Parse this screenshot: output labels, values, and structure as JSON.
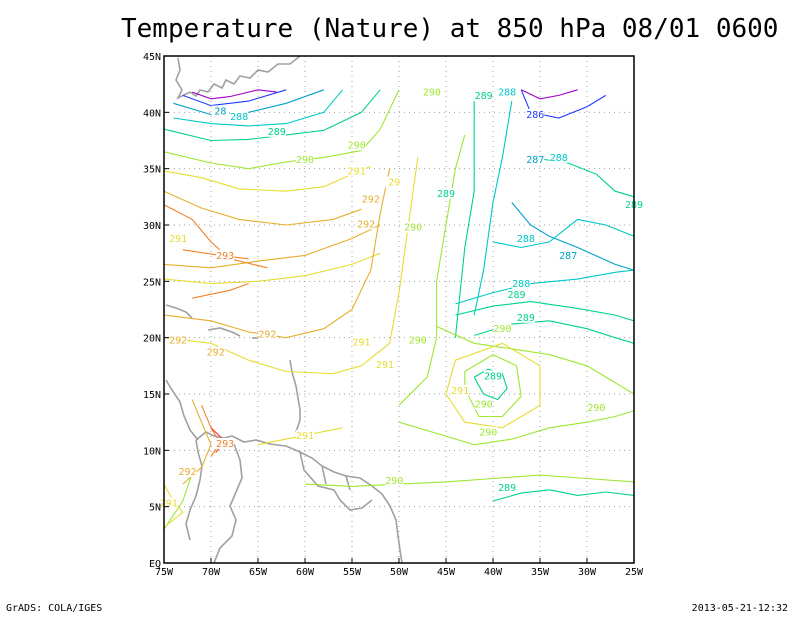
{
  "title": "Temperature (Nature) at 850 hPa 08/01 0600",
  "footer": {
    "left": "GrADS: COLA/IGES",
    "right": "2013-05-21-12:32"
  },
  "axes": {
    "lon_labels": [
      "75W",
      "70W",
      "65W",
      "60W",
      "55W",
      "50W",
      "45W",
      "40W",
      "35W",
      "30W",
      "25W"
    ],
    "lat_labels": [
      "EQ",
      "5N",
      "10N",
      "15N",
      "20N",
      "25N",
      "30N",
      "35N",
      "40N",
      "45N"
    ],
    "lon_range": [
      -75,
      -25
    ],
    "lat_range": [
      0,
      45
    ],
    "grid": "dotted"
  },
  "colors": {
    "c286": "#1e3cff",
    "c287": "#00a0c8",
    "c288": "#00c8c8",
    "c289": "#00d28c",
    "c290": "#a0e632",
    "c291": "#e6dc32",
    "c292": "#e6af2d",
    "c293": "#f08228",
    "c294": "#fa3c3c",
    "c_purple": "#a000c8",
    "coast": "#a0a0a0"
  },
  "contour_labels": [
    {
      "text": "290",
      "lon": -46.5,
      "lat": 41.5,
      "color": "c290"
    },
    {
      "text": "289",
      "lon": -41.0,
      "lat": 41.2,
      "color": "c289"
    },
    {
      "text": "288",
      "lon": -38.5,
      "lat": 41.5,
      "color": "c288"
    },
    {
      "text": "286",
      "lon": -35.5,
      "lat": 39.5,
      "color": "c286"
    },
    {
      "text": "28",
      "lon": -69.0,
      "lat": 39.8,
      "color": "c287"
    },
    {
      "text": "288",
      "lon": -67.0,
      "lat": 39.3,
      "color": "c288"
    },
    {
      "text": "289",
      "lon": -63.0,
      "lat": 38.0,
      "color": "c289"
    },
    {
      "text": "287",
      "lon": -35.5,
      "lat": 35.5,
      "color": "c287"
    },
    {
      "text": "288",
      "lon": -33.0,
      "lat": 35.7,
      "color": "c288"
    },
    {
      "text": "290",
      "lon": -60.0,
      "lat": 35.5,
      "color": "c290"
    },
    {
      "text": "290",
      "lon": -54.5,
      "lat": 36.8,
      "color": "c290"
    },
    {
      "text": "291",
      "lon": -54.5,
      "lat": 34.5,
      "color": "c291"
    },
    {
      "text": "29",
      "lon": -50.5,
      "lat": 33.5,
      "color": "c291"
    },
    {
      "text": "292",
      "lon": -53.0,
      "lat": 32.0,
      "color": "c292"
    },
    {
      "text": "289",
      "lon": -45.0,
      "lat": 32.5,
      "color": "c289"
    },
    {
      "text": "289",
      "lon": -25.0,
      "lat": 31.5,
      "color": "c289"
    },
    {
      "text": "292",
      "lon": -53.5,
      "lat": 29.8,
      "color": "c292"
    },
    {
      "text": "290",
      "lon": -48.5,
      "lat": 29.5,
      "color": "c290"
    },
    {
      "text": "291",
      "lon": -73.5,
      "lat": 28.5,
      "color": "c291"
    },
    {
      "text": "288",
      "lon": -36.5,
      "lat": 28.5,
      "color": "c288"
    },
    {
      "text": "287",
      "lon": -32.0,
      "lat": 27.0,
      "color": "c287"
    },
    {
      "text": "293",
      "lon": -68.5,
      "lat": 27.0,
      "color": "c293"
    },
    {
      "text": "288",
      "lon": -37.0,
      "lat": 24.5,
      "color": "c288"
    },
    {
      "text": "289",
      "lon": -37.5,
      "lat": 23.5,
      "color": "c289"
    },
    {
      "text": "289",
      "lon": -36.5,
      "lat": 21.5,
      "color": "c289"
    },
    {
      "text": "290",
      "lon": -39.0,
      "lat": 20.5,
      "color": "c290"
    },
    {
      "text": "292",
      "lon": -64.0,
      "lat": 20.0,
      "color": "c292"
    },
    {
      "text": "290",
      "lon": -48.0,
      "lat": 19.5,
      "color": "c290"
    },
    {
      "text": "291",
      "lon": -54.0,
      "lat": 19.3,
      "color": "c291"
    },
    {
      "text": "292",
      "lon": -73.5,
      "lat": 19.5,
      "color": "c292"
    },
    {
      "text": "292",
      "lon": -69.5,
      "lat": 18.4,
      "color": "c292"
    },
    {
      "text": "291",
      "lon": -51.5,
      "lat": 17.3,
      "color": "c291"
    },
    {
      "text": "289",
      "lon": -40.0,
      "lat": 16.3,
      "color": "c289"
    },
    {
      "text": "291",
      "lon": -43.5,
      "lat": 15.0,
      "color": "c291"
    },
    {
      "text": "290",
      "lon": -41.0,
      "lat": 13.8,
      "color": "c290"
    },
    {
      "text": "290",
      "lon": -29.0,
      "lat": 13.5,
      "color": "c290"
    },
    {
      "text": "290",
      "lon": -40.5,
      "lat": 11.3,
      "color": "c290"
    },
    {
      "text": "291",
      "lon": -60.0,
      "lat": 11.0,
      "color": "c291"
    },
    {
      "text": "293",
      "lon": -68.5,
      "lat": 10.3,
      "color": "c293"
    },
    {
      "text": "292",
      "lon": -72.5,
      "lat": 7.8,
      "color": "c292"
    },
    {
      "text": "290",
      "lon": -50.5,
      "lat": 7.0,
      "color": "c290"
    },
    {
      "text": "289",
      "lon": -38.5,
      "lat": 6.4,
      "color": "c289"
    },
    {
      "text": "291",
      "lon": -74.5,
      "lat": 5.0,
      "color": "c291"
    }
  ]
}
